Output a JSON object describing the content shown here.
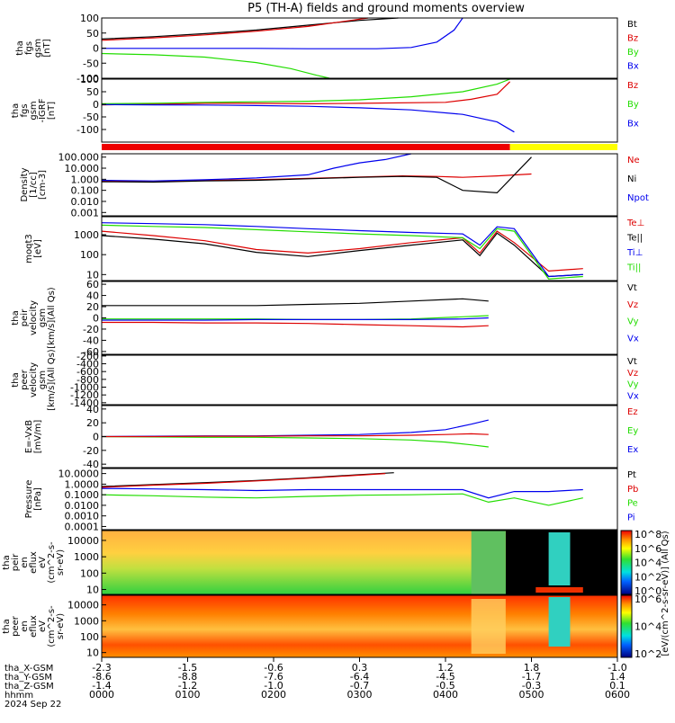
{
  "title": "P5 (TH-A) fields and ground moments overview",
  "colors": {
    "black": "#000000",
    "red": "#dd0000",
    "green": "#22dd00",
    "blue": "#0000ee",
    "bar_red": "#ee0000",
    "bar_yellow": "#ffff00"
  },
  "chart_data": [
    {
      "type": "line",
      "ylabel": [
        "tha",
        "fgs",
        "gsm",
        "[nT]"
      ],
      "ylim": [
        -100,
        100
      ],
      "yticks": [
        100,
        50,
        0,
        -50,
        -100
      ],
      "legend": [
        {
          "name": "Bt",
          "color": "black"
        },
        {
          "name": "Bz",
          "color": "red"
        },
        {
          "name": "By",
          "color": "green"
        },
        {
          "name": "Bx",
          "color": "blue"
        }
      ],
      "series": [
        {
          "name": "Bt",
          "color": "black",
          "x": [
            0,
            60,
            120,
            180,
            240,
            300,
            345
          ],
          "y": [
            30,
            38,
            48,
            60,
            76,
            92,
            100
          ]
        },
        {
          "name": "Bz",
          "color": "red",
          "x": [
            0,
            60,
            120,
            180,
            240,
            290,
            310
          ],
          "y": [
            26,
            34,
            44,
            56,
            72,
            92,
            100
          ]
        },
        {
          "name": "By",
          "color": "green",
          "x": [
            0,
            60,
            120,
            180,
            220,
            250,
            265
          ],
          "y": [
            -18,
            -22,
            -30,
            -48,
            -68,
            -90,
            -100
          ]
        },
        {
          "name": "Bx",
          "color": "blue",
          "x": [
            0,
            60,
            120,
            180,
            240,
            320,
            360,
            390,
            410,
            420
          ],
          "y": [
            -1,
            -1,
            -1,
            -1,
            -2,
            -2,
            2,
            20,
            60,
            100
          ]
        }
      ]
    },
    {
      "type": "line",
      "ylabel": [
        "tha",
        "fgs",
        "gsm",
        "-IGRF",
        "[nT]"
      ],
      "ylim": [
        -150,
        100
      ],
      "yticks": [
        100,
        50,
        0,
        -50,
        -100
      ],
      "legend": [
        {
          "name": "Bz",
          "color": "red"
        },
        {
          "name": "By",
          "color": "green"
        },
        {
          "name": "Bx",
          "color": "blue"
        }
      ],
      "series": [
        {
          "name": "Bz",
          "color": "red",
          "x": [
            0,
            60,
            120,
            180,
            240,
            300,
            400,
            430,
            460,
            475
          ],
          "y": [
            -2,
            0,
            4,
            4,
            2,
            4,
            8,
            20,
            40,
            90
          ]
        },
        {
          "name": "By",
          "color": "green",
          "x": [
            0,
            60,
            120,
            180,
            240,
            300,
            360,
            420,
            460,
            475
          ],
          "y": [
            2,
            4,
            8,
            10,
            12,
            18,
            30,
            50,
            80,
            100
          ]
        },
        {
          "name": "Bx",
          "color": "blue",
          "x": [
            0,
            60,
            120,
            180,
            240,
            300,
            360,
            420,
            460,
            480
          ],
          "y": [
            -1,
            -2,
            -3,
            -5,
            -8,
            -14,
            -22,
            -40,
            -70,
            -110
          ]
        }
      ]
    },
    {
      "type": "line",
      "ylabel": [
        "Density",
        "[1/cc]",
        "[cm-3]"
      ],
      "yscale": "log",
      "ylim": [
        0.0005,
        200
      ],
      "yticks": [
        "100.000",
        "10.000",
        "1.000",
        "0.100",
        "0.010",
        "0.001"
      ],
      "legend": [
        {
          "name": "Ne",
          "color": "red"
        },
        {
          "name": "Ni",
          "color": "black"
        },
        {
          "name": "Npot",
          "color": "blue"
        }
      ],
      "series": [
        {
          "name": "Ne",
          "color": "red",
          "x": [
            0,
            60,
            120,
            180,
            240,
            300,
            350,
            390,
            420,
            460,
            500
          ],
          "y": [
            0.7,
            0.6,
            0.8,
            0.9,
            1.2,
            1.6,
            2.0,
            1.8,
            1.5,
            2.0,
            3.0
          ]
        },
        {
          "name": "Ni",
          "color": "black",
          "x": [
            0,
            60,
            120,
            180,
            240,
            300,
            350,
            390,
            420,
            460,
            500
          ],
          "y": [
            0.6,
            0.55,
            0.7,
            0.8,
            1.1,
            1.5,
            1.8,
            1.5,
            0.1,
            0.06,
            100
          ]
        },
        {
          "name": "Npot",
          "color": "blue",
          "x": [
            0,
            60,
            120,
            180,
            240,
            270,
            300,
            330,
            360
          ],
          "y": [
            0.8,
            0.7,
            0.9,
            1.3,
            2.5,
            10,
            30,
            60,
            200
          ]
        }
      ]
    },
    {
      "type": "line",
      "ylabel": [
        "moqt3",
        "[eV]"
      ],
      "yscale": "log",
      "ylim": [
        5,
        8000
      ],
      "yticks": [
        "1000",
        "100",
        "10"
      ],
      "legend": [
        {
          "name": "Te⊥",
          "color": "red"
        },
        {
          "name": "Te||",
          "color": "black"
        },
        {
          "name": "Ti⊥",
          "color": "blue"
        },
        {
          "name": "Ti||",
          "color": "green"
        }
      ],
      "series": [
        {
          "name": "Te⊥",
          "color": "red",
          "x": [
            0,
            60,
            120,
            180,
            240,
            300,
            360,
            420,
            440,
            460,
            480,
            520,
            560
          ],
          "y": [
            1500,
            900,
            500,
            180,
            120,
            200,
            400,
            700,
            120,
            1500,
            400,
            15,
            20
          ]
        },
        {
          "name": "Te||",
          "color": "black",
          "x": [
            0,
            60,
            120,
            180,
            240,
            300,
            360,
            420,
            440,
            460,
            480,
            520,
            560
          ],
          "y": [
            900,
            600,
            350,
            130,
            80,
            160,
            300,
            550,
            90,
            1200,
            300,
            8,
            10
          ]
        },
        {
          "name": "Ti⊥",
          "color": "blue",
          "x": [
            0,
            60,
            120,
            180,
            240,
            300,
            360,
            420,
            440,
            460,
            480,
            520,
            560
          ],
          "y": [
            4000,
            3600,
            3200,
            2600,
            2000,
            1600,
            1300,
            1100,
            300,
            2500,
            2000,
            8,
            10
          ]
        },
        {
          "name": "Ti||",
          "color": "green",
          "x": [
            0,
            60,
            120,
            180,
            240,
            300,
            360,
            420,
            440,
            460,
            480,
            520,
            560
          ],
          "y": [
            3000,
            2600,
            2300,
            1800,
            1400,
            1100,
            900,
            700,
            200,
            2000,
            1500,
            6,
            8
          ]
        }
      ]
    },
    {
      "type": "line",
      "ylabel": [
        "tha",
        "peir",
        "velocity",
        "gsm",
        "[km/s](All Qs)"
      ],
      "ylim": [
        -65,
        65
      ],
      "yticks": [
        60,
        40,
        20,
        0,
        -20,
        -40,
        -60
      ],
      "legend": [
        {
          "name": "Vt",
          "color": "black"
        },
        {
          "name": "Vz",
          "color": "red"
        },
        {
          "name": "Vy",
          "color": "green"
        },
        {
          "name": "Vx",
          "color": "blue"
        }
      ],
      "series": [
        {
          "name": "Vt",
          "color": "black",
          "x": [
            0,
            60,
            120,
            180,
            240,
            300,
            360,
            420,
            450
          ],
          "y": [
            22,
            22,
            22,
            22,
            24,
            26,
            30,
            34,
            30
          ]
        },
        {
          "name": "Vz",
          "color": "red",
          "x": [
            0,
            60,
            120,
            180,
            240,
            300,
            360,
            420,
            450
          ],
          "y": [
            -8,
            -8,
            -9,
            -9,
            -10,
            -12,
            -14,
            -16,
            -14
          ]
        },
        {
          "name": "Vy",
          "color": "green",
          "x": [
            0,
            60,
            120,
            180,
            240,
            300,
            360,
            420,
            450
          ],
          "y": [
            -2,
            -2,
            -2,
            -2,
            -3,
            -3,
            -2,
            2,
            4
          ]
        },
        {
          "name": "Vx",
          "color": "blue",
          "x": [
            0,
            60,
            120,
            180,
            240,
            300,
            360,
            420,
            450
          ],
          "y": [
            -4,
            -4,
            -4,
            -3,
            -3,
            -3,
            -3,
            -2,
            0
          ]
        }
      ]
    },
    {
      "type": "line",
      "ylabel": [
        "tha",
        "peer",
        "velocity",
        "gsm",
        "[km/s](All Qs)"
      ],
      "ylim": [
        -1450,
        -180
      ],
      "yticks": [
        -200,
        -400,
        -600,
        -800,
        -1000,
        -1200,
        -1400
      ],
      "legend": [
        {
          "name": "Vt",
          "color": "black"
        },
        {
          "name": "Vz",
          "color": "red"
        },
        {
          "name": "Vy",
          "color": "green"
        },
        {
          "name": "Vx",
          "color": "blue"
        }
      ],
      "series": []
    },
    {
      "type": "line",
      "ylabel": [
        "E=-VxB",
        "[mV/m]"
      ],
      "ylim": [
        -45,
        45
      ],
      "yticks": [
        40,
        20,
        0,
        -20,
        -40
      ],
      "legend": [
        {
          "name": "Ez",
          "color": "red"
        },
        {
          "name": "Ey",
          "color": "green"
        },
        {
          "name": "Ex",
          "color": "blue"
        }
      ],
      "series": [
        {
          "name": "Ex",
          "color": "blue",
          "x": [
            0,
            60,
            120,
            180,
            240,
            300,
            360,
            400,
            430,
            450
          ],
          "y": [
            0,
            0.5,
            1,
            1,
            2,
            3,
            6,
            10,
            18,
            24
          ]
        },
        {
          "name": "Ey",
          "color": "green",
          "x": [
            0,
            60,
            120,
            180,
            240,
            300,
            360,
            400,
            430,
            450
          ],
          "y": [
            0,
            -0.5,
            -1,
            -1,
            -2,
            -3,
            -5,
            -8,
            -12,
            -15
          ]
        },
        {
          "name": "Ez",
          "color": "red",
          "x": [
            0,
            60,
            120,
            180,
            240,
            300,
            360,
            400,
            430,
            450
          ],
          "y": [
            0,
            0,
            0.5,
            0.5,
            1,
            1,
            2,
            3,
            4,
            3
          ]
        }
      ]
    },
    {
      "type": "line",
      "ylabel": [
        "Pressure",
        "[nPa]"
      ],
      "yscale": "log",
      "ylim": [
        5e-05,
        30
      ],
      "yticks": [
        "10.0000",
        "1.0000",
        "0.1000",
        "0.0100",
        "0.0010",
        "0.0001"
      ],
      "legend": [
        {
          "name": "Pt",
          "color": "black"
        },
        {
          "name": "Pb",
          "color": "red"
        },
        {
          "name": "Pe",
          "color": "green"
        },
        {
          "name": "Pi",
          "color": "blue"
        }
      ],
      "series": [
        {
          "name": "Pt",
          "color": "black",
          "x": [
            0,
            60,
            120,
            180,
            240,
            300,
            340
          ],
          "y": [
            0.6,
            0.9,
            1.4,
            2.2,
            4,
            8,
            12
          ]
        },
        {
          "name": "Pb",
          "color": "red",
          "x": [
            0,
            60,
            120,
            180,
            240,
            300,
            330
          ],
          "y": [
            0.5,
            0.8,
            1.2,
            2,
            3.6,
            7,
            10
          ]
        },
        {
          "name": "Pe",
          "color": "green",
          "x": [
            0,
            60,
            120,
            180,
            240,
            300,
            360,
            420,
            450,
            480,
            520,
            560
          ],
          "y": [
            0.1,
            0.08,
            0.06,
            0.05,
            0.07,
            0.09,
            0.1,
            0.12,
            0.02,
            0.05,
            0.01,
            0.05
          ]
        },
        {
          "name": "Pi",
          "color": "blue",
          "x": [
            0,
            60,
            120,
            180,
            240,
            300,
            360,
            420,
            450,
            480,
            520,
            560
          ],
          "y": [
            0.4,
            0.35,
            0.3,
            0.25,
            0.3,
            0.3,
            0.3,
            0.3,
            0.05,
            0.2,
            0.2,
            0.3
          ]
        }
      ]
    },
    {
      "type": "heatmap",
      "ylabel": [
        "tha",
        "peir",
        "en",
        "eflux",
        "eV",
        "(cm^2-s-",
        "sr-eV)"
      ],
      "yscale": "log",
      "yticks": [
        "10000",
        "1000",
        "100",
        "10"
      ]
    },
    {
      "type": "heatmap",
      "ylabel": [
        "tha",
        "peer",
        "en",
        "eflux",
        "eV",
        "(cm^2-s-",
        "sr-eV)"
      ],
      "yscale": "log",
      "yticks": [
        "10000",
        "1000",
        "100",
        "10"
      ]
    }
  ],
  "colorbars": [
    {
      "label": "[eV/(cm^2-s-sr-eV)] (All Qs)",
      "ticks": [
        "10^8",
        "10^6",
        "10^4",
        "10^2",
        "10^0"
      ]
    },
    {
      "label": "[eV/(cm^2-s-sr-eV)] (All Qs)",
      "ticks": [
        "10^6",
        "10^4",
        "10^2"
      ]
    }
  ],
  "xaxis": {
    "rows": [
      {
        "label": "tha_X-GSM",
        "values": [
          "-2.3",
          "-1.5",
          "-0.6",
          "0.3",
          "1.2",
          "1.8",
          "-1.0"
        ]
      },
      {
        "label": "tha_Y-GSM",
        "values": [
          "-8.6",
          "-8.8",
          "-7.6",
          "-6.4",
          "-4.5",
          "-1.7",
          "1.4"
        ]
      },
      {
        "label": "tha_Z-GSM",
        "values": [
          "-1.4",
          "-1.2",
          "-1.0",
          "-0.7",
          "-0.5",
          "-0.3",
          "0.1"
        ]
      },
      {
        "label": "hhmm",
        "values": [
          "0000",
          "0100",
          "0200",
          "0300",
          "0400",
          "0500",
          "0600"
        ]
      }
    ],
    "date": "2024 Sep 22",
    "xlim": [
      0,
      600
    ]
  }
}
